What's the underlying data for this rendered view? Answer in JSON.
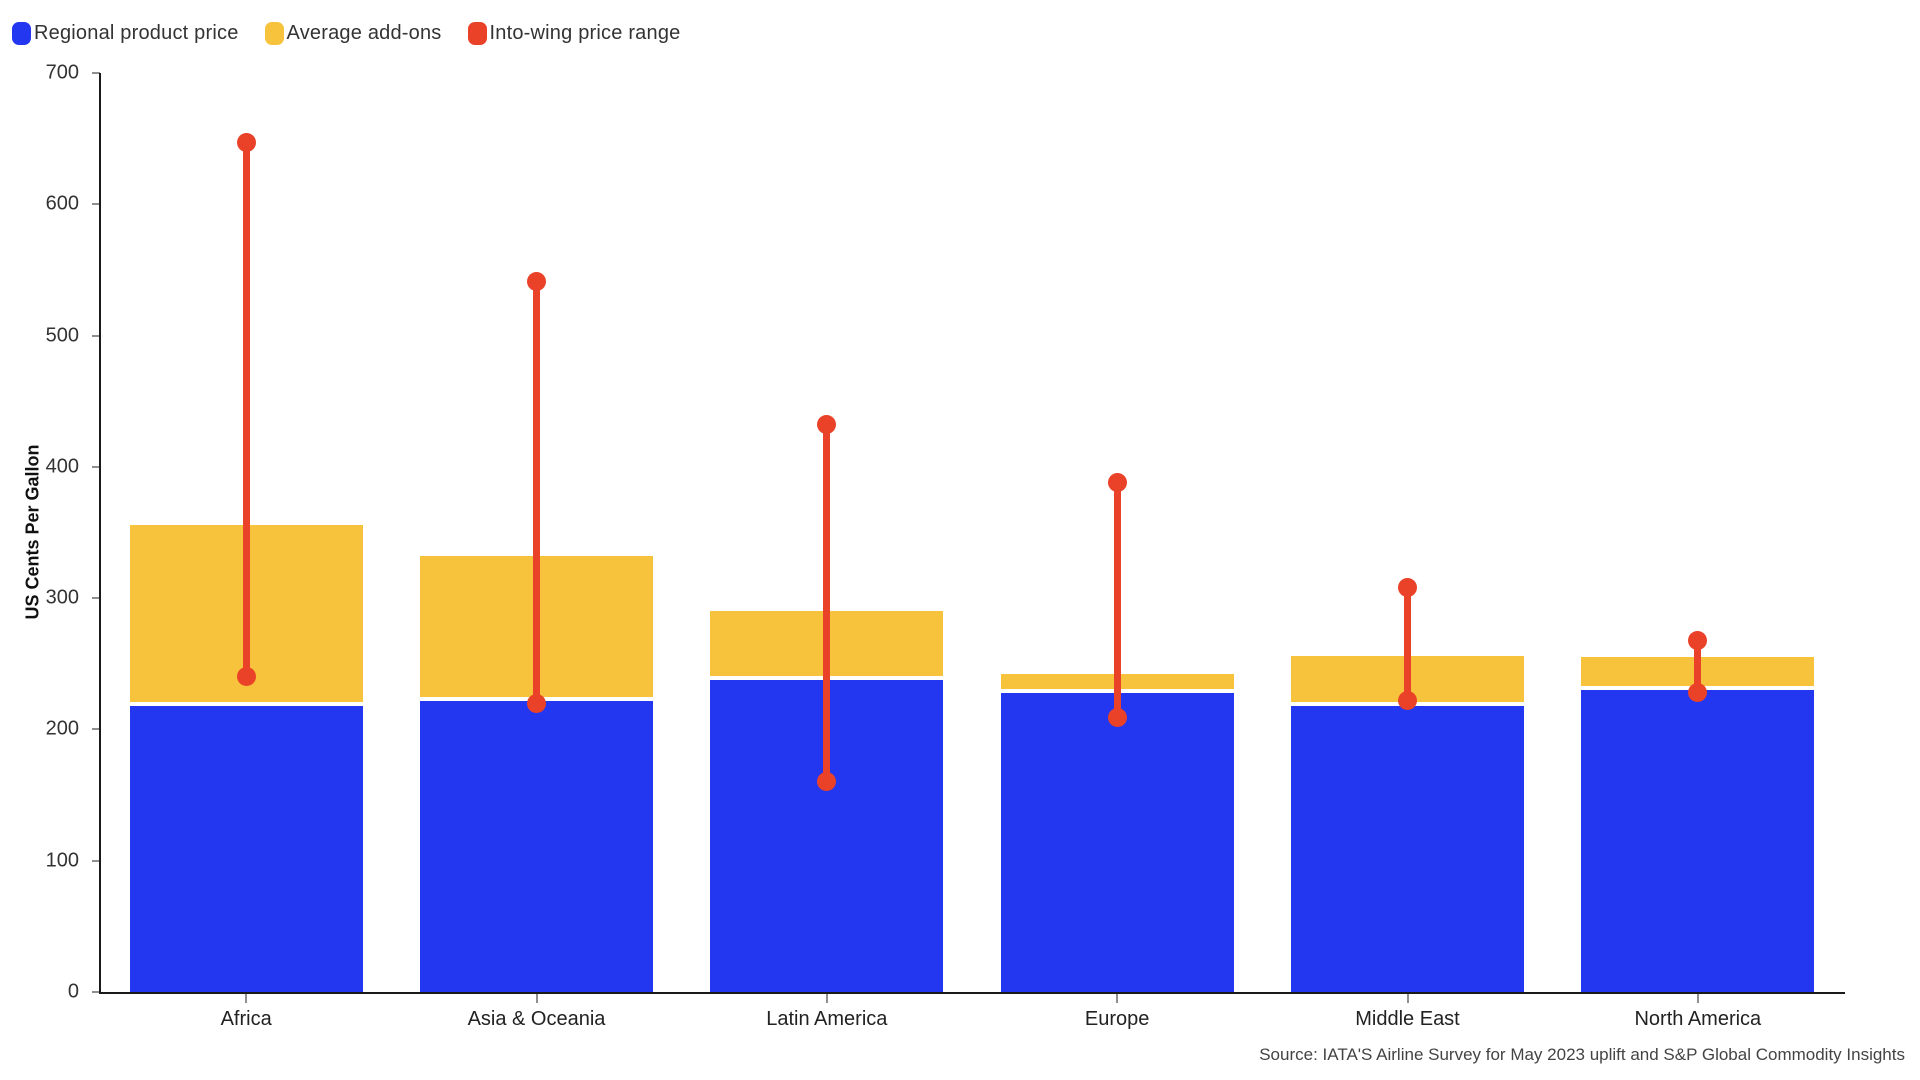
{
  "chart_data": {
    "type": "bar",
    "stacked": true,
    "title": "",
    "xlabel": "",
    "ylabel": "US Cents Per Gallon",
    "ylim": [
      0,
      700
    ],
    "ytick_interval": 100,
    "yticks": [
      0,
      100,
      200,
      300,
      400,
      500,
      600,
      700
    ],
    "grid": false,
    "legend_position": "top-left",
    "categories": [
      "Africa",
      "Asia & Oceania",
      "Latin America",
      "Europe",
      "Middle East",
      "North America"
    ],
    "series": [
      {
        "name": "Regional product price",
        "type": "bar",
        "color": "#2336f0",
        "values": [
          218,
          222,
          238,
          228,
          218,
          230
        ]
      },
      {
        "name": "Average add-ons",
        "type": "bar",
        "color": "#f7c33c",
        "values": [
          138,
          110,
          52,
          14,
          38,
          25
        ]
      },
      {
        "name": "Into-wing price range",
        "type": "range",
        "color": "#ea4228",
        "low": [
          240,
          220,
          160,
          209,
          222,
          228
        ],
        "high": [
          647,
          541,
          432,
          388,
          308,
          268
        ]
      }
    ],
    "stacked_totals": [
      356,
      332,
      290,
      242,
      256,
      255
    ]
  },
  "source_note": "Source: IATA'S Airline Survey for May 2023 uplift and S&P Global Commodity Insights"
}
